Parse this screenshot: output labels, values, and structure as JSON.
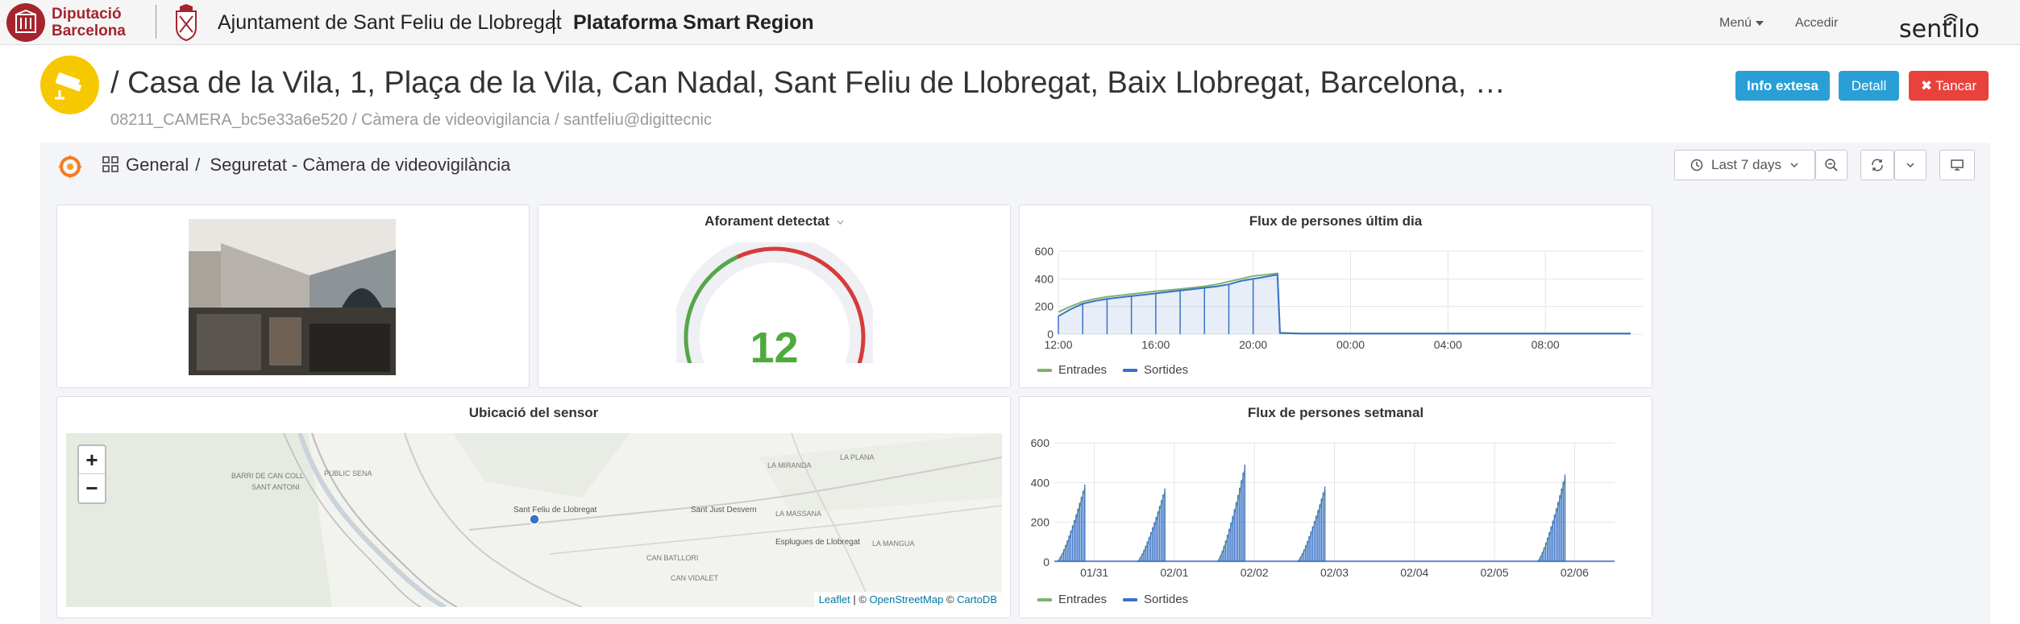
{
  "navbar": {
    "dipu_line1": "Diputació",
    "dipu_line2": "Barcelona",
    "ajuntament": "Ajuntament de Sant Feliu de Llobregat",
    "platform": "Plataforma Smart Region",
    "menu_label": "Menú",
    "login_label": "Accedir",
    "sentilo_logo_text": "sentilo"
  },
  "header": {
    "title": "/ Casa de la Vila, 1, Plaça de la Vila, Can Nadal, Sant Feliu de Llobregat, Baix Llobregat, Barcelona, …",
    "subtitle": "08211_CAMERA_bc5e33a6e520 / Càmera de videovigilancia / santfeliu@digittecnic",
    "info_button": "Info extesa",
    "detail_button": "Detall",
    "close_button": "Tancar"
  },
  "dashboard": {
    "breadcrumb_folder": "General",
    "breadcrumb_separator": "/",
    "breadcrumb_dashboard": "Seguretat - Càmera de videovigilància",
    "time_range": "Last 7 days",
    "gauge_panel": {
      "title": "Aforament detectat",
      "value": "12",
      "min": 0,
      "max": 50,
      "threshold": 20,
      "colors": {
        "ok": "#56a64b",
        "alert": "#d63b3b"
      }
    },
    "map_panel": {
      "title": "Ubicació del sensor",
      "zoom_in": "+",
      "zoom_out": "−",
      "attrib_leaflet": "Leaflet",
      "attrib_sep1": " | © ",
      "attrib_osm": "OpenStreetMap",
      "attrib_sep2": " © ",
      "attrib_carto": "CartoDB",
      "labels": [
        "Sant Feliu de Llobregat",
        "Sant Just Desvern",
        "Esplugues de Llobregat",
        "SANT ANTONI",
        "BARRI DE CAN COLL",
        "LA MASSANA",
        "LA PLANA",
        "PUBLIC SENA",
        "CAN BATLLORI",
        "LA MANGUA",
        "LA MIRANDA",
        "CAN VIDALET"
      ]
    }
  },
  "chart_data": [
    {
      "type": "line",
      "title": "Flux de persones últim dia",
      "ylim": [
        0,
        600
      ],
      "y_ticks": [
        "0",
        "200",
        "400",
        "600"
      ],
      "x_ticks": [
        "12:00",
        "16:00",
        "20:00",
        "00:00",
        "04:00",
        "08:00"
      ],
      "x_range_hours": [
        12,
        36
      ],
      "legend_placement": "bottom-left",
      "series": [
        {
          "name": "Entrades",
          "color": "#7eb26d",
          "x": [
            12,
            12.5,
            13,
            13.5,
            14,
            14.5,
            15,
            15.5,
            16,
            16.5,
            17,
            17.5,
            18,
            18.5,
            19,
            19.5,
            20,
            20.5,
            21,
            21.1,
            22,
            24,
            28,
            32,
            35.5
          ],
          "y": [
            160,
            200,
            235,
            255,
            270,
            280,
            290,
            300,
            310,
            318,
            326,
            336,
            346,
            360,
            380,
            400,
            420,
            430,
            440,
            10,
            5,
            5,
            5,
            5,
            5
          ]
        },
        {
          "name": "Sortides",
          "color": "#3a72c7",
          "x": [
            12,
            12.5,
            13,
            13.5,
            14,
            14.5,
            15,
            15.5,
            16,
            16.5,
            17,
            17.5,
            18,
            18.5,
            19,
            19.5,
            20,
            20.5,
            21,
            21.1,
            22,
            24,
            28,
            32,
            35.5
          ],
          "y": [
            130,
            180,
            220,
            240,
            255,
            265,
            275,
            285,
            295,
            305,
            315,
            325,
            335,
            345,
            360,
            385,
            400,
            415,
            430,
            8,
            4,
            4,
            4,
            4,
            4
          ]
        }
      ]
    },
    {
      "type": "line",
      "title": "Flux de persones setmanal",
      "ylim": [
        0,
        600
      ],
      "y_ticks": [
        "0",
        "200",
        "400",
        "600"
      ],
      "x_ticks": [
        "01/31",
        "02/01",
        "02/02",
        "02/03",
        "02/04",
        "02/05",
        "02/06"
      ],
      "legend_placement": "bottom-left",
      "day_peaks": [
        {
          "day_start": 0,
          "peak": 390
        },
        {
          "day_start": 1,
          "peak": 370
        },
        {
          "day_start": 2,
          "peak": 490
        },
        {
          "day_start": 3,
          "peak": 380
        },
        {
          "day_start": 6,
          "peak": 440
        }
      ],
      "series": [
        {
          "name": "Entrades",
          "color": "#7eb26d"
        },
        {
          "name": "Sortides",
          "color": "#3a72c7"
        }
      ]
    }
  ]
}
